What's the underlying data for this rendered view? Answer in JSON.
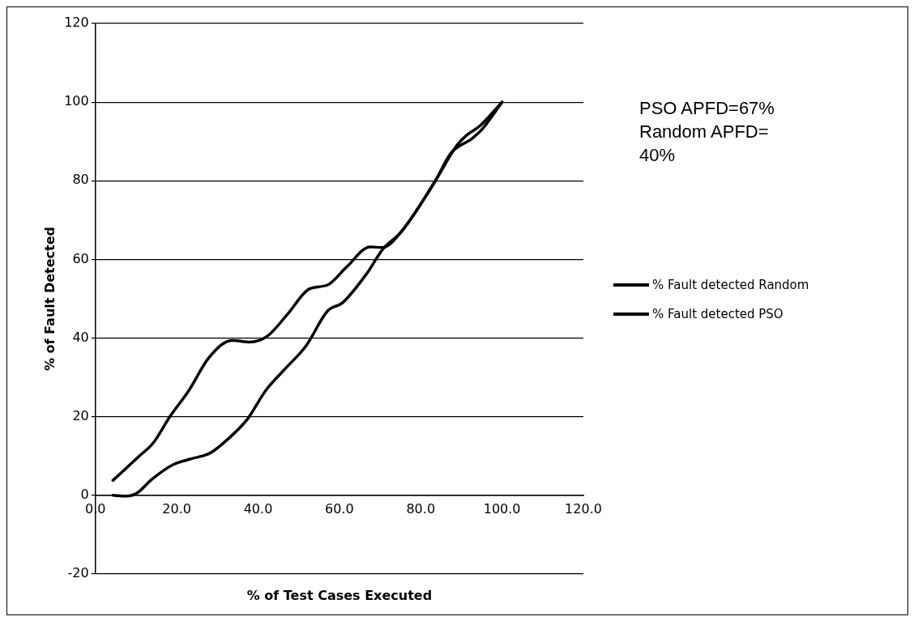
{
  "chart_data": {
    "type": "line",
    "xlabel": "% of Test Cases Executed",
    "ylabel": "% of Fault Detected",
    "annotations": [
      "PSO APFD=67% Random APFD= 40%"
    ],
    "series": [
      {
        "name": "% Fault detected Random",
        "color": "#000000",
        "x": [
          4.3,
          7.7,
          10.4,
          13.8,
          19.1,
          23.6,
          28.3,
          32.8,
          37.4,
          41.9,
          46.5,
          51.8,
          57.1,
          60.8,
          66.8,
          70.6,
          75.2,
          83.6,
          87.4,
          92.7,
          95,
          100
        ],
        "values": [
          0,
          -0.2,
          0.7,
          4,
          7.8,
          9.3,
          10.8,
          14.5,
          19.4,
          26.7,
          32,
          38,
          46.9,
          49,
          56.5,
          62.5,
          67,
          80,
          87,
          90.8,
          93,
          100
        ]
      },
      {
        "name": "% Fault detected PSO",
        "color": "#000000",
        "x": [
          4.3,
          10.8,
          14.2,
          18.3,
          23,
          27.9,
          33.6,
          38,
          42.3,
          47.2,
          52.6,
          57.1,
          61.7,
          67.6,
          70.6,
          75.2,
          83.6,
          88.9,
          91.2,
          94.6,
          100
        ],
        "values": [
          3.8,
          10,
          13.3,
          20,
          26.7,
          35,
          39.4,
          39,
          40.5,
          46,
          52.5,
          53.5,
          58,
          63.2,
          63,
          67,
          80,
          89,
          91.5,
          94,
          100
        ]
      }
    ],
    "xlim": [
      0,
      120
    ],
    "xticks": [
      {
        "value": 0,
        "label": "0.0"
      },
      {
        "value": 20,
        "label": "20.0"
      },
      {
        "value": 40,
        "label": "40.0"
      },
      {
        "value": 60,
        "label": "60.0"
      },
      {
        "value": 80,
        "label": "80.0"
      },
      {
        "value": 100,
        "label": "100.0"
      },
      {
        "value": 120,
        "label": "120.0"
      }
    ],
    "ylim": [
      -20,
      120
    ],
    "yticks": [
      -20,
      0,
      20,
      40,
      60,
      80,
      100,
      120
    ],
    "grid": "y",
    "legend": "right",
    "marker": "none",
    "line_style": "solid"
  }
}
